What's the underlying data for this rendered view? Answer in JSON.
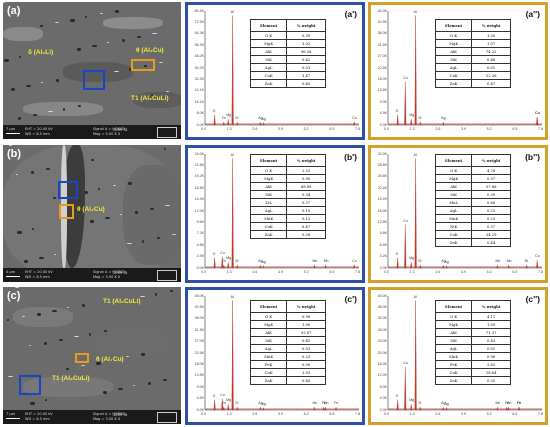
{
  "figure": {
    "rows": [
      {
        "sem": {
          "label": "(a)",
          "annotations": [
            "δ (Al₂Li)",
            "θ (Al₂Cu)",
            "T1 (Al₂CuLi)"
          ],
          "footer": [
            "7 μm",
            "EHT = 20.00 kV",
            "WD = 8.5 mm",
            "Signal A = HDBSD",
            "Mag = 5.00 K X",
            "2055 T8"
          ]
        },
        "eds_left": {
          "label": "(a')",
          "y_ticks": [
            "80.4K",
            "72.3K",
            "64.3K",
            "56.3K",
            "48.2K",
            "40.2K",
            "32.2K",
            "24.1K",
            "16.1K",
            "8.0K",
            "0.0K"
          ],
          "x_ticks": [
            "0.0",
            "1.3",
            "2.6",
            "3.9",
            "5.2",
            "6.5",
            "7.8"
          ],
          "peak_labels": [
            "Al",
            "Mg",
            "O",
            "Si",
            "Cu",
            "Zn",
            "Ag",
            "Ag"
          ],
          "table": {
            "headers": [
              "Element",
              "% weight"
            ],
            "rows": [
              [
                "O K",
                "0.39"
              ],
              [
                "MgK",
                "1.02"
              ],
              [
                "AlK",
                "96.28"
              ],
              [
                "SiK",
                "0.42"
              ],
              [
                "AgL",
                "0.03"
              ],
              [
                "CuK",
                "1.47"
              ],
              [
                "ZnK",
                "0.40"
              ]
            ]
          }
        },
        "eds_right": {
          "label": "(a'')",
          "y_ticks": [
            "45.0K",
            "40.5K",
            "36.0K",
            "31.5K",
            "27.0K",
            "22.5K",
            "18.0K",
            "13.5K",
            "9.0K",
            "4.5K",
            "0.0K"
          ],
          "x_ticks": [
            "0.0",
            "1.3",
            "2.6",
            "3.9",
            "5.2",
            "6.5",
            "7.8"
          ],
          "peak_labels": [
            "Al",
            "Cu",
            "Cu",
            "O",
            "Mg",
            "Si",
            "Ag",
            "Cu"
          ],
          "table": {
            "headers": [
              "Element",
              "% weight"
            ],
            "rows": [
              [
                "O K",
                "1.50"
              ],
              [
                "MgK",
                "1.07"
              ],
              [
                "AlK",
                "74.22"
              ],
              [
                "SiK",
                "0.48"
              ],
              [
                "AgL",
                "0.01"
              ],
              [
                "CuK",
                "22.26"
              ],
              [
                "ZnK",
                "0.47"
              ]
            ]
          }
        }
      },
      {
        "sem": {
          "label": "(b)",
          "annotations": [
            "θ (Al₂Cu)"
          ],
          "footer": [
            "4 μm",
            "EHT = 20.00 kV",
            "WD = 8.5 mm",
            "Signal A = HDBSD",
            "Mag = 3.00 K X",
            "2055 T8"
          ]
        },
        "eds_left": {
          "label": "(b')",
          "y_ticks": [
            "24.0K",
            "21.6K",
            "19.2K",
            "16.8K",
            "14.4K",
            "12.0K",
            "9.6K",
            "7.2K",
            "4.8K",
            "2.4K",
            "0.0K"
          ],
          "x_ticks": [
            "0.0",
            "1.3",
            "2.6",
            "3.9",
            "5.2",
            "6.5",
            "7.8"
          ],
          "peak_labels": [
            "Al",
            "Cu",
            "O",
            "Zn",
            "Mg",
            "Si",
            "Ag",
            "Ag",
            "Mn",
            "Mn",
            "Cu"
          ],
          "table": {
            "headers": [
              "Element",
              "% weight"
            ],
            "rows": [
              [
                "O K",
                "2.53"
              ],
              [
                "MgK",
                "0.90"
              ],
              [
                "AlK",
                "88.88"
              ],
              [
                "SiK",
                "0.34"
              ],
              [
                "ZrL",
                "0.37"
              ],
              [
                "AgL",
                "0.10"
              ],
              [
                "MnK",
                "0.12"
              ],
              [
                "CuK",
                "6.47"
              ],
              [
                "ZnK",
                "0.28"
              ]
            ]
          }
        },
        "eds_right": {
          "label": "(b'')",
          "y_ticks": [
            "32.0K",
            "28.8K",
            "25.6K",
            "22.4K",
            "19.2K",
            "16.0K",
            "12.8K",
            "9.6K",
            "6.4K",
            "3.2K",
            "0.0K"
          ],
          "x_ticks": [
            "0.0",
            "1.3",
            "2.6",
            "3.9",
            "5.2",
            "6.5",
            "7.8"
          ],
          "peak_labels": [
            "Al",
            "Cu",
            "O",
            "Mg",
            "Si",
            "Ag",
            "Ag",
            "Mn",
            "Mn",
            "Cu",
            "Ni"
          ],
          "table": {
            "headers": [
              "Element",
              "% weight"
            ],
            "rows": [
              [
                "O K",
                "4.76"
              ],
              [
                "MgK",
                "0.97"
              ],
              [
                "AlK",
                "57.86"
              ],
              [
                "SiK",
                "0.39"
              ],
              [
                "MnL",
                "0.66"
              ],
              [
                "AgL",
                "0.22"
              ],
              [
                "MnK",
                "0.23"
              ],
              [
                "NiK",
                "0.37"
              ],
              [
                "CuK",
                "34.29"
              ],
              [
                "ZnK",
                "0.44"
              ]
            ]
          }
        }
      },
      {
        "sem": {
          "label": "(c)",
          "annotations": [
            "T1 (Al₂CuLi)",
            "θ (Al₂Cu)",
            "T1 (Al₂CuLi)"
          ],
          "footer": [
            "7 μm",
            "EHT = 20.00 kV",
            "WD = 8.5 mm",
            "Signal A = HDBSD",
            "Mag = 3.00 K X",
            "2055 T8"
          ]
        },
        "eds_left": {
          "label": "(c')",
          "y_ticks": [
            "45.0K",
            "40.5K",
            "36.0K",
            "31.5K",
            "27.0K",
            "22.5K",
            "18.0K",
            "13.5K",
            "9.0K",
            "4.5K",
            "0.0K"
          ],
          "x_ticks": [
            "0.0",
            "1.3",
            "2.6",
            "3.9",
            "5.2",
            "6.5",
            "7.8"
          ],
          "peak_labels": [
            "Al",
            "Cu",
            "O",
            "Zn",
            "Mn",
            "Mg",
            "Si",
            "Ag",
            "Ag",
            "Fe",
            "Mn",
            "Fe"
          ],
          "table": {
            "headers": [
              "Element",
              "% weight"
            ],
            "rows": [
              [
                "O K",
                "0.98"
              ],
              [
                "MgK",
                "1.00"
              ],
              [
                "AlK",
                "92.87"
              ],
              [
                "SiK",
                "0.45"
              ],
              [
                "AgL",
                "0.03"
              ],
              [
                "MnK",
                "0.23"
              ],
              [
                "FeK",
                "0.06"
              ],
              [
                "CuK",
                "3.93"
              ],
              [
                "ZnK",
                "0.46"
              ]
            ]
          }
        },
        "eds_right": {
          "label": "(c'')",
          "y_ticks": [
            "40.0K",
            "36.0K",
            "32.0K",
            "28.0K",
            "24.0K",
            "20.0K",
            "16.0K",
            "12.0K",
            "8.0K",
            "4.0K",
            "0.0K"
          ],
          "x_ticks": [
            "0.0",
            "1.3",
            "2.6",
            "3.9",
            "5.2",
            "6.5",
            "7.8"
          ],
          "peak_labels": [
            "Al",
            "Cu",
            "O",
            "Fe",
            "Mn",
            "Mg",
            "Si",
            "Ag",
            "Ag",
            "Fe",
            "Mn",
            "Fe"
          ],
          "table": {
            "headers": [
              "Element",
              "% weight"
            ],
            "rows": [
              [
                "O K",
                "4.11"
              ],
              [
                "MgK",
                "1.09"
              ],
              [
                "AlK",
                "71.37"
              ],
              [
                "SiK",
                "0.43"
              ],
              [
                "AgL",
                "0.01"
              ],
              [
                "MnK",
                "0.96"
              ],
              [
                "FeK",
                "2.82"
              ],
              [
                "CuK",
                "18.64"
              ],
              [
                "ZnK",
                "0.35"
              ]
            ]
          }
        }
      }
    ]
  },
  "colors": {
    "blue_frame": "#2d4fa8",
    "gold_frame": "#d3a12b",
    "peak": "#c0392b",
    "annotation": "#f2ea3c"
  }
}
